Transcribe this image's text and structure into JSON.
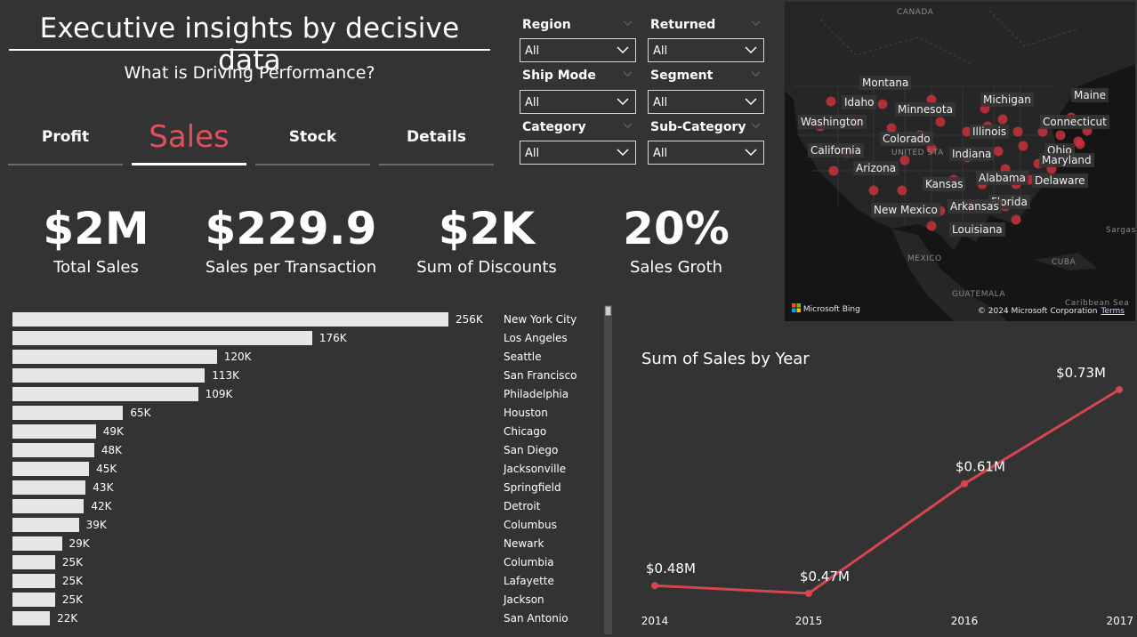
{
  "header": {
    "title": "Executive insights by decisive data",
    "subtitle": "What is Driving Performance?"
  },
  "nav": {
    "tabs": [
      {
        "label": "Profit"
      },
      {
        "label": "Sales"
      },
      {
        "label": "Stock"
      },
      {
        "label": "Details"
      }
    ],
    "active_tab": "Sales"
  },
  "filters": {
    "region": {
      "label": "Region",
      "value": "All"
    },
    "returned": {
      "label": "Returned",
      "value": "All"
    },
    "ship_mode": {
      "label": "Ship Mode",
      "value": "All"
    },
    "segment": {
      "label": "Segment",
      "value": "All"
    },
    "category": {
      "label": "Category",
      "value": "All"
    },
    "sub_category": {
      "label": "Sub-Category",
      "value": "All"
    }
  },
  "map": {
    "country_labels": {
      "canada": "CANADA",
      "united_states": "UNITED STA",
      "mexico": "MEXICO",
      "cuba": "CUBA",
      "guatemala": "GUATEMALA",
      "caribbean": "Caribbean Sea",
      "sargasso": "Sargass"
    },
    "state_labels": [
      "Montana",
      "Idaho",
      "Minnesota",
      "Michigan",
      "Maine",
      "Washington",
      "Illinois",
      "Connecticut",
      "Colorado",
      "Ohio",
      "California",
      "Indiana",
      "Maryland",
      "Arizona",
      "Alabama",
      "Delaware",
      "Kansas",
      "Florida",
      "New Mexico",
      "Arkansas",
      "Louisiana"
    ],
    "brand": "Microsoft Bing",
    "copyright": "© 2024 Microsoft Corporation",
    "terms": "Terms",
    "dot_color": "#c8303c"
  },
  "kpis": [
    {
      "value": "$2M",
      "label": "Total Sales"
    },
    {
      "value": "$229.9",
      "label": "Sales per Transaction"
    },
    {
      "value": "$2K",
      "label": "Sum of Discounts"
    },
    {
      "value": "20%",
      "label": "Sales Groth"
    }
  ],
  "chart_data": [
    {
      "type": "bar",
      "orientation": "horizontal",
      "categories": [
        "New York City",
        "Los Angeles",
        "Seattle",
        "San Francisco",
        "Philadelphia",
        "Houston",
        "Chicago",
        "San Diego",
        "Jacksonville",
        "Springfield",
        "Detroit",
        "Columbus",
        "Newark",
        "Columbia",
        "Lafayette",
        "Jackson",
        "San Antonio"
      ],
      "values": [
        256,
        176,
        120,
        113,
        109,
        65,
        49,
        48,
        45,
        43,
        42,
        39,
        29,
        25,
        25,
        25,
        22
      ],
      "value_labels": [
        "256K",
        "176K",
        "120K",
        "113K",
        "109K",
        "65K",
        "49K",
        "48K",
        "45K",
        "43K",
        "42K",
        "39K",
        "29K",
        "25K",
        "25K",
        "25K",
        "22K"
      ],
      "unit": "K",
      "bar_color": "#e6e6e6"
    },
    {
      "type": "line",
      "title": "Sum of Sales by Year",
      "x": [
        "2014",
        "2015",
        "2016",
        "2017"
      ],
      "series": [
        {
          "values": [
            0.48,
            0.47,
            0.61,
            0.73
          ],
          "labels": [
            "$0.48M",
            "$0.47M",
            "$0.61M",
            "$0.73M"
          ]
        }
      ],
      "line_color": "#d64552"
    }
  ],
  "colors": {
    "background": "#333333",
    "accent": "#e0505e"
  }
}
